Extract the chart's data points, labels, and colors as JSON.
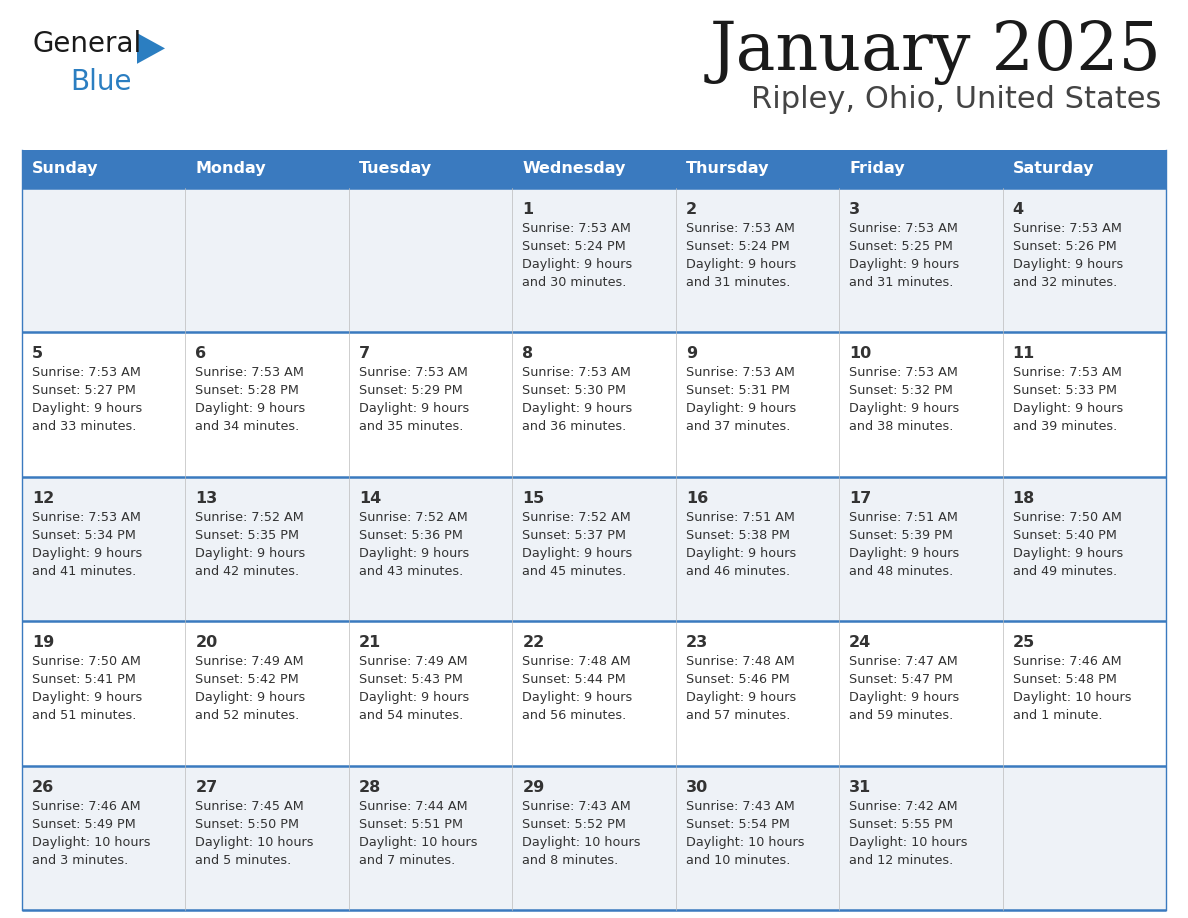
{
  "title": "January 2025",
  "subtitle": "Ripley, Ohio, United States",
  "header_color": "#3a7abf",
  "header_text_color": "#ffffff",
  "day_names": [
    "Sunday",
    "Monday",
    "Tuesday",
    "Wednesday",
    "Thursday",
    "Friday",
    "Saturday"
  ],
  "bg_color_even": "#eef2f7",
  "bg_color_odd": "#ffffff",
  "row_separator_color": "#3a7abf",
  "day_num_color": "#333333",
  "info_color": "#333333",
  "logo_general_color": "#1a1a1a",
  "logo_blue_color": "#2b7ec1",
  "weeks": [
    {
      "days": [
        {
          "date": "",
          "info": ""
        },
        {
          "date": "",
          "info": ""
        },
        {
          "date": "",
          "info": ""
        },
        {
          "date": "1",
          "info": "Sunrise: 7:53 AM\nSunset: 5:24 PM\nDaylight: 9 hours\nand 30 minutes."
        },
        {
          "date": "2",
          "info": "Sunrise: 7:53 AM\nSunset: 5:24 PM\nDaylight: 9 hours\nand 31 minutes."
        },
        {
          "date": "3",
          "info": "Sunrise: 7:53 AM\nSunset: 5:25 PM\nDaylight: 9 hours\nand 31 minutes."
        },
        {
          "date": "4",
          "info": "Sunrise: 7:53 AM\nSunset: 5:26 PM\nDaylight: 9 hours\nand 32 minutes."
        }
      ]
    },
    {
      "days": [
        {
          "date": "5",
          "info": "Sunrise: 7:53 AM\nSunset: 5:27 PM\nDaylight: 9 hours\nand 33 minutes."
        },
        {
          "date": "6",
          "info": "Sunrise: 7:53 AM\nSunset: 5:28 PM\nDaylight: 9 hours\nand 34 minutes."
        },
        {
          "date": "7",
          "info": "Sunrise: 7:53 AM\nSunset: 5:29 PM\nDaylight: 9 hours\nand 35 minutes."
        },
        {
          "date": "8",
          "info": "Sunrise: 7:53 AM\nSunset: 5:30 PM\nDaylight: 9 hours\nand 36 minutes."
        },
        {
          "date": "9",
          "info": "Sunrise: 7:53 AM\nSunset: 5:31 PM\nDaylight: 9 hours\nand 37 minutes."
        },
        {
          "date": "10",
          "info": "Sunrise: 7:53 AM\nSunset: 5:32 PM\nDaylight: 9 hours\nand 38 minutes."
        },
        {
          "date": "11",
          "info": "Sunrise: 7:53 AM\nSunset: 5:33 PM\nDaylight: 9 hours\nand 39 minutes."
        }
      ]
    },
    {
      "days": [
        {
          "date": "12",
          "info": "Sunrise: 7:53 AM\nSunset: 5:34 PM\nDaylight: 9 hours\nand 41 minutes."
        },
        {
          "date": "13",
          "info": "Sunrise: 7:52 AM\nSunset: 5:35 PM\nDaylight: 9 hours\nand 42 minutes."
        },
        {
          "date": "14",
          "info": "Sunrise: 7:52 AM\nSunset: 5:36 PM\nDaylight: 9 hours\nand 43 minutes."
        },
        {
          "date": "15",
          "info": "Sunrise: 7:52 AM\nSunset: 5:37 PM\nDaylight: 9 hours\nand 45 minutes."
        },
        {
          "date": "16",
          "info": "Sunrise: 7:51 AM\nSunset: 5:38 PM\nDaylight: 9 hours\nand 46 minutes."
        },
        {
          "date": "17",
          "info": "Sunrise: 7:51 AM\nSunset: 5:39 PM\nDaylight: 9 hours\nand 48 minutes."
        },
        {
          "date": "18",
          "info": "Sunrise: 7:50 AM\nSunset: 5:40 PM\nDaylight: 9 hours\nand 49 minutes."
        }
      ]
    },
    {
      "days": [
        {
          "date": "19",
          "info": "Sunrise: 7:50 AM\nSunset: 5:41 PM\nDaylight: 9 hours\nand 51 minutes."
        },
        {
          "date": "20",
          "info": "Sunrise: 7:49 AM\nSunset: 5:42 PM\nDaylight: 9 hours\nand 52 minutes."
        },
        {
          "date": "21",
          "info": "Sunrise: 7:49 AM\nSunset: 5:43 PM\nDaylight: 9 hours\nand 54 minutes."
        },
        {
          "date": "22",
          "info": "Sunrise: 7:48 AM\nSunset: 5:44 PM\nDaylight: 9 hours\nand 56 minutes."
        },
        {
          "date": "23",
          "info": "Sunrise: 7:48 AM\nSunset: 5:46 PM\nDaylight: 9 hours\nand 57 minutes."
        },
        {
          "date": "24",
          "info": "Sunrise: 7:47 AM\nSunset: 5:47 PM\nDaylight: 9 hours\nand 59 minutes."
        },
        {
          "date": "25",
          "info": "Sunrise: 7:46 AM\nSunset: 5:48 PM\nDaylight: 10 hours\nand 1 minute."
        }
      ]
    },
    {
      "days": [
        {
          "date": "26",
          "info": "Sunrise: 7:46 AM\nSunset: 5:49 PM\nDaylight: 10 hours\nand 3 minutes."
        },
        {
          "date": "27",
          "info": "Sunrise: 7:45 AM\nSunset: 5:50 PM\nDaylight: 10 hours\nand 5 minutes."
        },
        {
          "date": "28",
          "info": "Sunrise: 7:44 AM\nSunset: 5:51 PM\nDaylight: 10 hours\nand 7 minutes."
        },
        {
          "date": "29",
          "info": "Sunrise: 7:43 AM\nSunset: 5:52 PM\nDaylight: 10 hours\nand 8 minutes."
        },
        {
          "date": "30",
          "info": "Sunrise: 7:43 AM\nSunset: 5:54 PM\nDaylight: 10 hours\nand 10 minutes."
        },
        {
          "date": "31",
          "info": "Sunrise: 7:42 AM\nSunset: 5:55 PM\nDaylight: 10 hours\nand 12 minutes."
        },
        {
          "date": "",
          "info": ""
        }
      ]
    }
  ]
}
